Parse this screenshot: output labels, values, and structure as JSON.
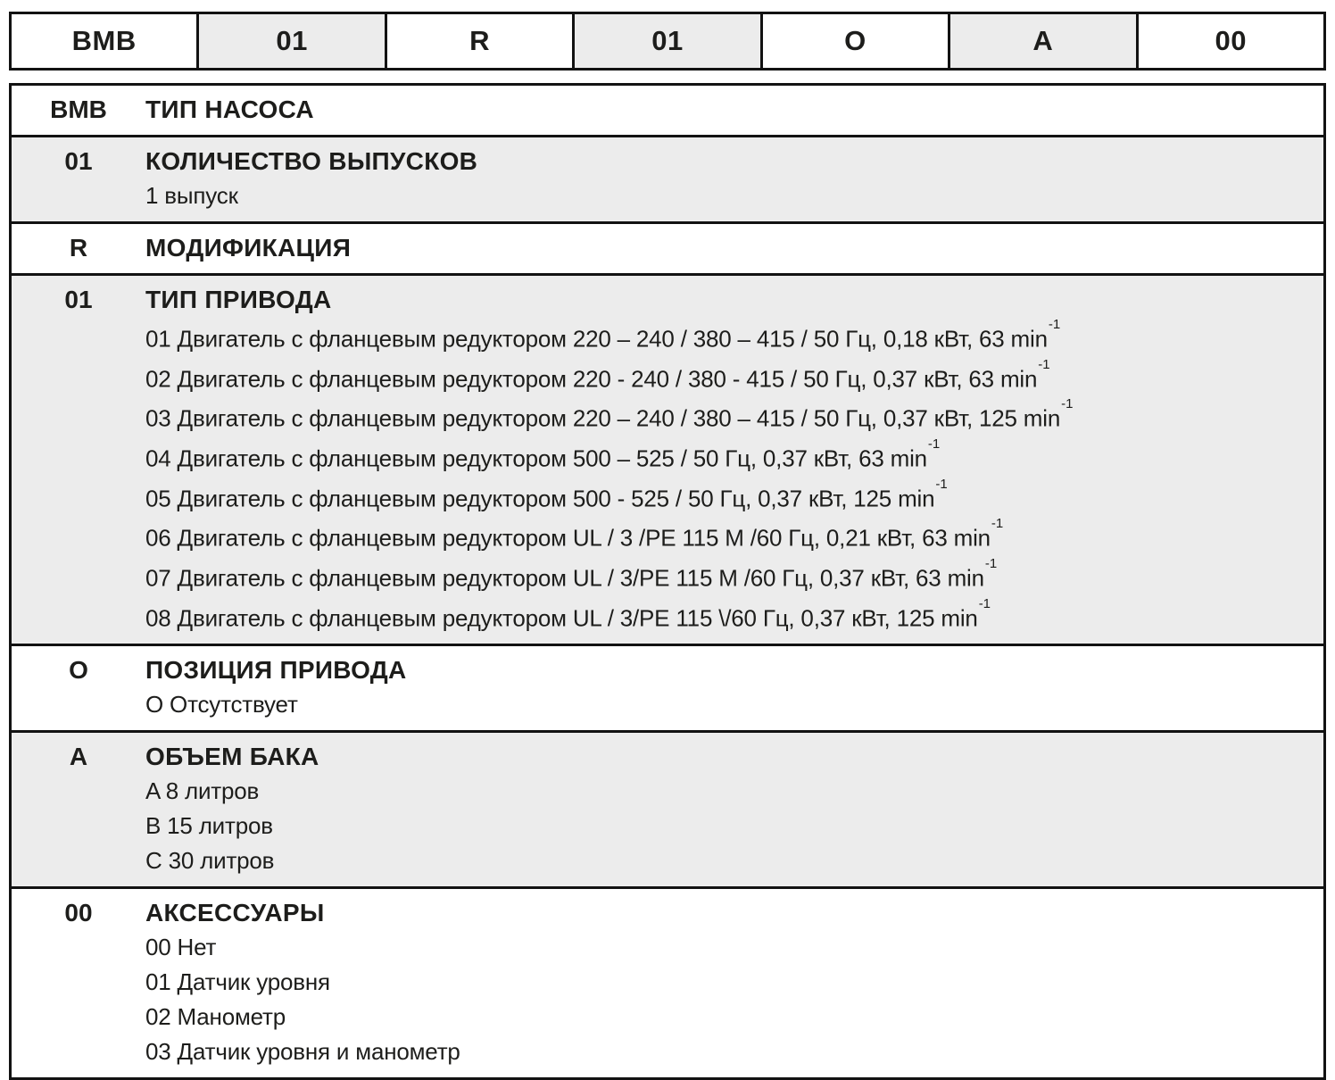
{
  "colors": {
    "shaded_bg": "#ececec",
    "border": "#121212",
    "text": "#1d1d1b",
    "background": "#ffffff"
  },
  "code_bar": {
    "cells": [
      {
        "label": "BMB",
        "shaded": false
      },
      {
        "label": "01",
        "shaded": true
      },
      {
        "label": "R",
        "shaded": false
      },
      {
        "label": "01",
        "shaded": true
      },
      {
        "label": "O",
        "shaded": false
      },
      {
        "label": "A",
        "shaded": true
      },
      {
        "label": "00",
        "shaded": false
      }
    ]
  },
  "table": {
    "rows": [
      {
        "code": "BMB",
        "title": "ТИП НАСОСА",
        "shaded": false,
        "options": []
      },
      {
        "code": "01",
        "title": "КОЛИЧЕСТВО ВЫПУСКОВ",
        "shaded": true,
        "options": [
          {
            "text": "1 выпуск"
          }
        ]
      },
      {
        "code": "R",
        "title": "МОДИФИКАЦИЯ",
        "shaded": false,
        "options": []
      },
      {
        "code": "01",
        "title": "ТИП ПРИВОДА",
        "shaded": true,
        "options": [
          {
            "text": "01 Двигатель с фланцевым редуктором 220 – 240 / 380 – 415 / 50 Гц, 0,18 кВт, 63 min",
            "sup": "-1"
          },
          {
            "text": "02 Двигатель с фланцевым редуктором 220 - 240 / 380 - 415 / 50 Гц, 0,37 кВт, 63 min",
            "sup": "-1"
          },
          {
            "text": "03 Двигатель с фланцевым редуктором 220 – 240 / 380 – 415 / 50 Гц, 0,37 кВт, 125 min",
            "sup": "-1"
          },
          {
            "text": "04 Двигатель с фланцевым редуктором 500 – 525 / 50 Гц, 0,37 кВт, 63 min",
            "sup": "-1"
          },
          {
            "text": "05 Двигатель с фланцевым редуктором 500 - 525 / 50 Гц, 0,37 кВт, 125 min",
            "sup": "-1"
          },
          {
            "text": "06 Двигатель с фланцевым редуктором UL / 3 /PE 115 M /60 Гц, 0,21 кВт, 63 min",
            "sup": "-1"
          },
          {
            "text": "07 Двигатель с фланцевым редуктором UL / 3/PE 115 M /60 Гц, 0,37 кВт, 63 min",
            "sup": "-1"
          },
          {
            "text": "08 Двигатель с фланцевым редуктором UL / 3/PE 115 \\/60 Гц, 0,37 кВт, 125 min",
            "sup": "-1"
          }
        ]
      },
      {
        "code": "O",
        "title": "ПОЗИЦИЯ ПРИВОДА",
        "shaded": false,
        "options": [
          {
            "text": "O Отсутствует"
          }
        ]
      },
      {
        "code": "A",
        "title": "ОБЪЕМ БАКА",
        "shaded": true,
        "options": [
          {
            "text": "A 8 литров"
          },
          {
            "text": "B 15 литров"
          },
          {
            "text": "C 30 литров"
          }
        ]
      },
      {
        "code": "00",
        "title": "АКСЕССУАРЫ",
        "shaded": false,
        "options": [
          {
            "text": "00 Нет"
          },
          {
            "text": "01 Датчик уровня"
          },
          {
            "text": "02 Манометр"
          },
          {
            "text": "03 Датчик уровня и манометр"
          }
        ]
      }
    ]
  }
}
